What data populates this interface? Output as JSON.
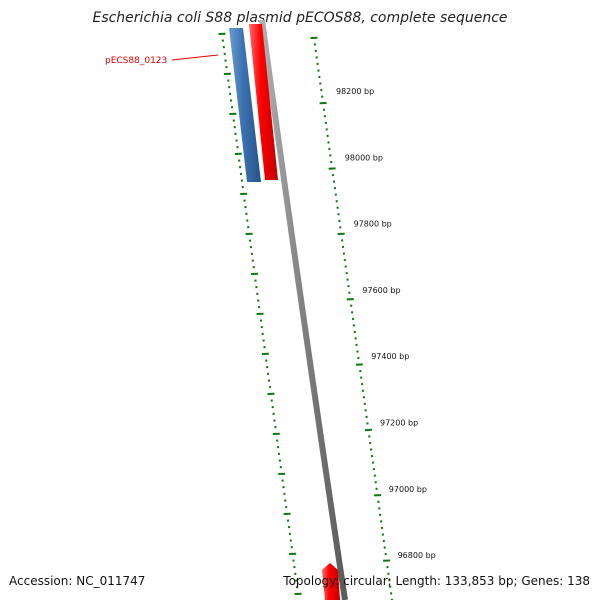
{
  "title": "Escherichia coli S88 plasmid pECOS88, complete sequence",
  "footer": {
    "accession": "Accession: NC_011747",
    "topology": "Topology: circular; Length: 133,853 bp; Genes: 138"
  },
  "gene_label": "pECS88_0123",
  "ruler_labels": [
    "98200 bp",
    "98000 bp",
    "97800 bp",
    "97600 bp",
    "97400 bp",
    "97200 bp",
    "97000 bp",
    "96800 bp"
  ],
  "colors": {
    "gene_forward": "#ff0000",
    "gene_reverse": "#3b72b0",
    "backbone": "#808080",
    "tick": "#0a7a0a",
    "label": "#e00000"
  }
}
